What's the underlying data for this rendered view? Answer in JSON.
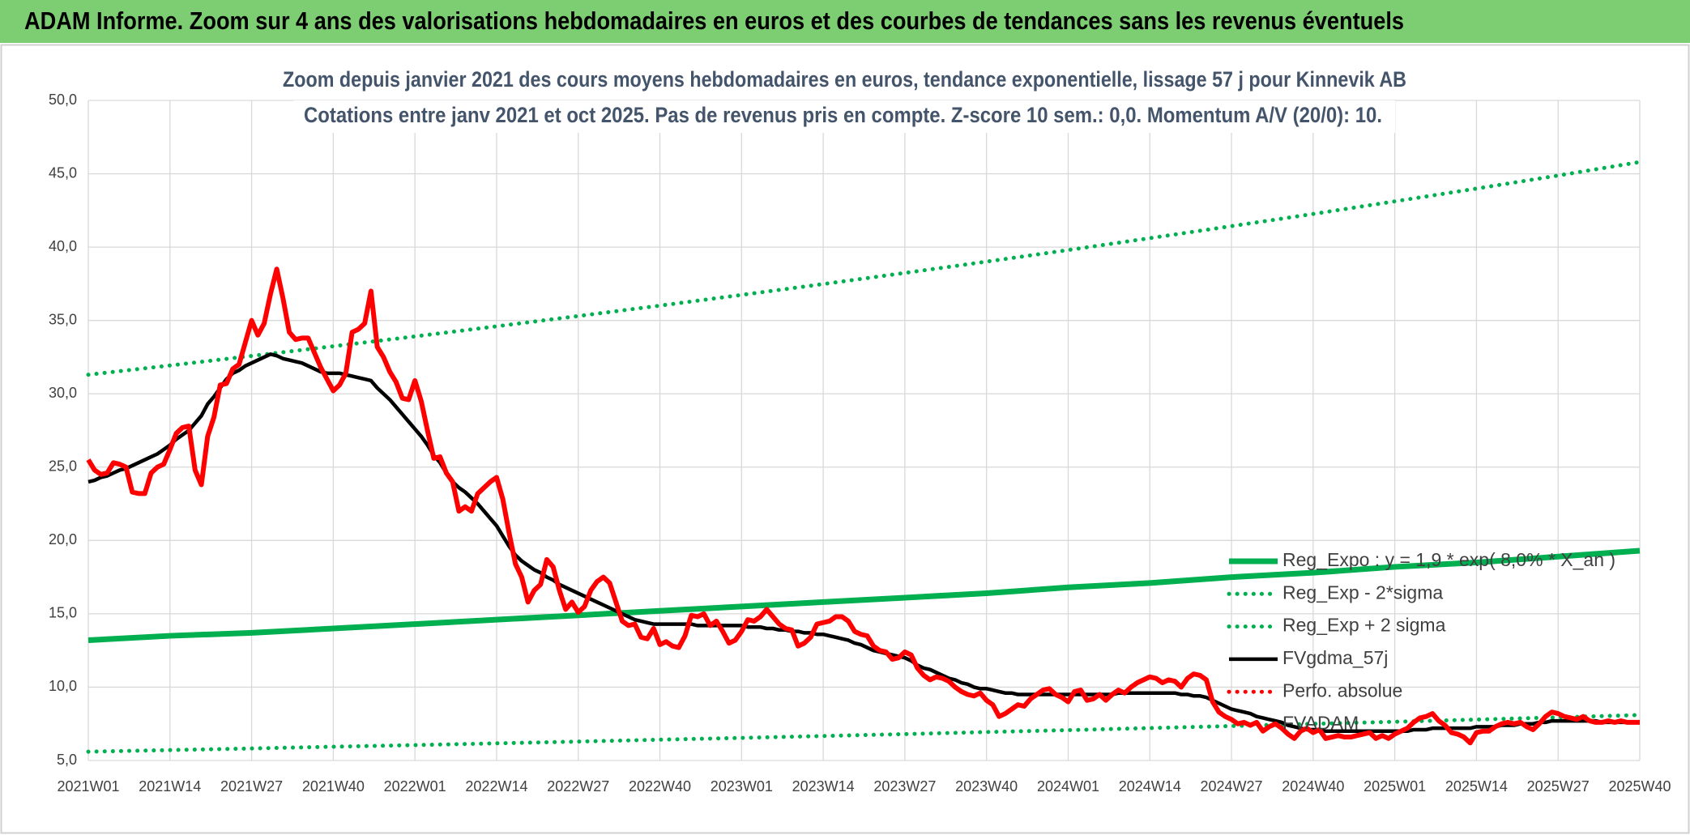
{
  "header": {
    "title": "ADAM Informe. Zoom sur 4 ans des valorisations hebdomadaires en euros et des courbes de tendances sans les revenus éventuels"
  },
  "chart_data": {
    "type": "line",
    "title": "Zoom depuis janvier 2021 des cours moyens hebdomadaires en euros, tendance exponentielle, lissage 57 j pour Kinnevik AB",
    "subtitle": "Cotations entre janv 2021 et oct 2025. Pas de revenus pris en compte. Z-score 10 sem.: 0,0. Momentum A/V (20/0): 10.",
    "categories": [
      "2021W01",
      null,
      null,
      null,
      null,
      null,
      null,
      null,
      null,
      null,
      null,
      null,
      null,
      "2021W14",
      null,
      null,
      null,
      null,
      null,
      null,
      null,
      null,
      null,
      null,
      null,
      null,
      "2021W27",
      null,
      null,
      null,
      null,
      null,
      null,
      null,
      null,
      null,
      null,
      null,
      null,
      "2021W40",
      null,
      null,
      null,
      null,
      null,
      null,
      null,
      null,
      null,
      null,
      null,
      null,
      "2022W01",
      null,
      null,
      null,
      null,
      null,
      null,
      null,
      null,
      null,
      null,
      null,
      null,
      "2022W14",
      null,
      null,
      null,
      null,
      null,
      null,
      null,
      null,
      null,
      null,
      null,
      null,
      "2022W27",
      null,
      null,
      null,
      null,
      null,
      null,
      null,
      null,
      null,
      null,
      null,
      null,
      "2022W40",
      null,
      null,
      null,
      null,
      null,
      null,
      null,
      null,
      null,
      null,
      null,
      null,
      "2023W01",
      null,
      null,
      null,
      null,
      null,
      null,
      null,
      null,
      null,
      null,
      null,
      null,
      "2023W14",
      null,
      null,
      null,
      null,
      null,
      null,
      null,
      null,
      null,
      null,
      null,
      null,
      "2023W27",
      null,
      null,
      null,
      null,
      null,
      null,
      null,
      null,
      null,
      null,
      null,
      null,
      "2023W40",
      null,
      null,
      null,
      null,
      null,
      null,
      null,
      null,
      null,
      null,
      null,
      null,
      "2024W01",
      null,
      null,
      null,
      null,
      null,
      null,
      null,
      null,
      null,
      null,
      null,
      null,
      "2024W14",
      null,
      null,
      null,
      null,
      null,
      null,
      null,
      null,
      null,
      null,
      null,
      null,
      "2024W27",
      null,
      null,
      null,
      null,
      null,
      null,
      null,
      null,
      null,
      null,
      null,
      null,
      "2024W40",
      null,
      null,
      null,
      null,
      null,
      null,
      null,
      null,
      null,
      null,
      null,
      null,
      "2025W01",
      null,
      null,
      null,
      null,
      null,
      null,
      null,
      null,
      null,
      null,
      null,
      null,
      "2025W14",
      null,
      null,
      null,
      null,
      null,
      null,
      null,
      null,
      null,
      null,
      null,
      null,
      "2025W27",
      null,
      null,
      null,
      null,
      null,
      null,
      null,
      null,
      null,
      null,
      null,
      null,
      "2025W40"
    ],
    "ylim": [
      5,
      50
    ],
    "yticks": [
      {
        "value": 5,
        "label": "5,0"
      },
      {
        "value": 10,
        "label": "10,0"
      },
      {
        "value": 15,
        "label": "15,0"
      },
      {
        "value": 20,
        "label": "20,0"
      },
      {
        "value": 25,
        "label": "25,0"
      },
      {
        "value": 30,
        "label": "30,0"
      },
      {
        "value": 35,
        "label": "35,0"
      },
      {
        "value": 40,
        "label": "40,0"
      },
      {
        "value": 45,
        "label": "45,0"
      },
      {
        "value": 50,
        "label": "50,0"
      }
    ],
    "grid": true,
    "legend": "right",
    "series": [
      {
        "name": "Reg_Expo : y = 1,9 * exp( 8,0% * X_an )",
        "color": "#00b050",
        "style": "solid",
        "x": [
          "2021W01",
          "2021W14",
          "2021W27",
          "2021W40",
          "2022W01",
          "2022W14",
          "2022W27",
          "2022W40",
          "2023W01",
          "2023W14",
          "2023W27",
          "2023W40",
          "2024W01",
          "2024W14",
          "2024W27",
          "2024W40",
          "2025W01",
          "2025W14",
          "2025W27",
          "2025W40"
        ],
        "values": [
          13.2,
          13.5,
          13.7,
          14.0,
          14.3,
          14.6,
          14.9,
          15.2,
          15.5,
          15.8,
          16.1,
          16.4,
          16.8,
          17.1,
          17.5,
          17.8,
          18.2,
          18.5,
          18.9,
          19.3
        ]
      },
      {
        "name": "Reg_Exp - 2*sigma",
        "color": "#00b050",
        "style": "dotted",
        "x": [
          "2021W01",
          "2021W14",
          "2021W27",
          "2021W40",
          "2022W01",
          "2022W14",
          "2022W27",
          "2022W40",
          "2023W01",
          "2023W14",
          "2023W27",
          "2023W40",
          "2024W01",
          "2024W14",
          "2024W27",
          "2024W40",
          "2025W01",
          "2025W14",
          "2025W27",
          "2025W40"
        ],
        "values": [
          5.6,
          5.71,
          5.82,
          5.94,
          6.05,
          6.17,
          6.29,
          6.42,
          6.54,
          6.67,
          6.8,
          6.94,
          7.07,
          7.21,
          7.35,
          7.5,
          7.64,
          7.79,
          7.94,
          8.1
        ]
      },
      {
        "name": "Reg_Exp + 2 sigma",
        "color": "#00b050",
        "style": "dotted",
        "x": [
          "2021W01",
          "2021W14",
          "2021W27",
          "2021W40",
          "2022W01",
          "2022W14",
          "2022W27",
          "2022W40",
          "2023W01",
          "2023W14",
          "2023W27",
          "2023W40",
          "2024W01",
          "2024W14",
          "2024W27",
          "2024W40",
          "2025W01",
          "2025W14",
          "2025W27",
          "2025W40"
        ],
        "values": [
          31.3,
          31.93,
          32.58,
          33.24,
          33.91,
          34.6,
          35.3,
          36.01,
          36.74,
          37.48,
          38.24,
          39.01,
          39.8,
          40.61,
          41.43,
          42.26,
          43.12,
          43.99,
          44.88,
          45.8
        ]
      },
      {
        "name": "FVgdma_57j",
        "color": "#000000",
        "style": "solid",
        "values": [
          24.0,
          24.1,
          24.3,
          24.4,
          24.6,
          24.8,
          24.9,
          25.1,
          25.3,
          25.5,
          25.7,
          25.9,
          26.2,
          26.5,
          26.9,
          27.2,
          27.5,
          28.0,
          28.5,
          29.3,
          29.8,
          30.4,
          31.0,
          31.4,
          31.6,
          31.9,
          32.1,
          32.3,
          32.5,
          32.7,
          32.6,
          32.4,
          32.3,
          32.2,
          32.1,
          31.9,
          31.7,
          31.5,
          31.4,
          31.4,
          31.4,
          31.3,
          31.2,
          31.1,
          31.0,
          30.9,
          30.4,
          30.0,
          29.6,
          29.1,
          28.6,
          28.1,
          27.6,
          27.1,
          26.5,
          25.8,
          25.3,
          24.6,
          24.0,
          23.6,
          23.3,
          22.9,
          22.5,
          22.0,
          21.5,
          21.0,
          20.3,
          19.6,
          19.0,
          18.6,
          18.3,
          18.0,
          17.8,
          17.5,
          17.3,
          17.0,
          16.8,
          16.6,
          16.4,
          16.2,
          16.0,
          15.8,
          15.6,
          15.4,
          15.2,
          15.0,
          14.8,
          14.6,
          14.5,
          14.4,
          14.3,
          14.3,
          14.3,
          14.3,
          14.3,
          14.3,
          14.3,
          14.2,
          14.2,
          14.2,
          14.2,
          14.2,
          14.2,
          14.2,
          14.2,
          14.1,
          14.1,
          14.1,
          14.0,
          14.0,
          13.9,
          13.9,
          13.8,
          13.8,
          13.7,
          13.7,
          13.6,
          13.6,
          13.5,
          13.4,
          13.3,
          13.2,
          13.0,
          12.9,
          12.7,
          12.5,
          12.4,
          12.3,
          12.2,
          12.1,
          12.0,
          11.8,
          11.5,
          11.3,
          11.2,
          11.0,
          10.8,
          10.6,
          10.5,
          10.3,
          10.2,
          10.0,
          9.9,
          9.9,
          9.8,
          9.7,
          9.6,
          9.6,
          9.5,
          9.5,
          9.5,
          9.5,
          9.5,
          9.5,
          9.5,
          9.5,
          9.5,
          9.5,
          9.5,
          9.5,
          9.5,
          9.5,
          9.5,
          9.5,
          9.6,
          9.6,
          9.6,
          9.6,
          9.6,
          9.6,
          9.6,
          9.6,
          9.6,
          9.6,
          9.5,
          9.5,
          9.4,
          9.4,
          9.3,
          9.1,
          8.9,
          8.7,
          8.5,
          8.4,
          8.3,
          8.2,
          8.0,
          7.9,
          7.8,
          7.7,
          7.6,
          7.4,
          7.3,
          7.2,
          7.1,
          7.1,
          7.1,
          7.0,
          7.0,
          7.0,
          7.0,
          7.0,
          7.0,
          7.0,
          7.0,
          7.0,
          7.0,
          7.0,
          7.0,
          7.0,
          7.0,
          7.1,
          7.1,
          7.1,
          7.2,
          7.2,
          7.2,
          7.2,
          7.2,
          7.2,
          7.2,
          7.3,
          7.3,
          7.3,
          7.3,
          7.4,
          7.4,
          7.4,
          7.5,
          7.5,
          7.5,
          7.6,
          7.6,
          7.7,
          7.7,
          7.7,
          7.7,
          7.7,
          7.7,
          7.7,
          7.7,
          7.6,
          7.6,
          7.6,
          7.6,
          7.6,
          7.6,
          7.6
        ]
      },
      {
        "name": "Perfo. absolue",
        "color": "#ff0000",
        "style": "solid",
        "legend_style": "dotted",
        "values": [
          25.5,
          24.8,
          24.5,
          24.6,
          25.3,
          25.2,
          25.0,
          23.3,
          23.2,
          23.2,
          24.6,
          25.0,
          25.2,
          26.2,
          27.3,
          27.7,
          27.8,
          24.8,
          23.8,
          27.1,
          28.4,
          30.6,
          30.7,
          31.7,
          32.0,
          33.5,
          35.0,
          34.0,
          34.8,
          36.8,
          38.5,
          36.5,
          34.2,
          33.7,
          33.8,
          33.8,
          32.8,
          31.8,
          31.0,
          30.2,
          30.6,
          31.4,
          34.2,
          34.4,
          34.8,
          37.0,
          33.2,
          32.5,
          31.5,
          30.8,
          29.7,
          29.6,
          30.9,
          29.5,
          27.5,
          25.6,
          25.7,
          24.6,
          24.0,
          22.0,
          22.3,
          22.0,
          23.2,
          23.6,
          24.0,
          24.3,
          22.8,
          20.5,
          18.4,
          17.5,
          15.8,
          16.6,
          17.0,
          18.7,
          18.2,
          16.6,
          15.3,
          15.8,
          15.1,
          15.5,
          16.6,
          17.2,
          17.5,
          17.1,
          15.8,
          14.5,
          14.2,
          14.3,
          13.4,
          13.3,
          14.0,
          12.9,
          13.1,
          12.8,
          12.7,
          13.5,
          14.9,
          14.8,
          15.0,
          14.2,
          14.5,
          13.8,
          13.0,
          13.2,
          13.8,
          14.6,
          14.5,
          14.8,
          15.3,
          14.8,
          14.3,
          14.0,
          13.9,
          12.8,
          13.0,
          13.4,
          14.3,
          14.4,
          14.5,
          14.8,
          14.8,
          14.5,
          13.8,
          13.6,
          13.5,
          12.8,
          12.5,
          12.4,
          11.9,
          12.0,
          12.4,
          12.2,
          11.3,
          10.8,
          10.5,
          10.7,
          10.6,
          10.4,
          10.0,
          9.7,
          9.5,
          9.4,
          9.6,
          9.1,
          8.8,
          8.0,
          8.2,
          8.5,
          8.8,
          8.7,
          9.2,
          9.5,
          9.8,
          9.9,
          9.5,
          9.3,
          9.0,
          9.7,
          9.8,
          9.1,
          9.2,
          9.5,
          9.1,
          9.5,
          9.8,
          9.6,
          10.0,
          10.3,
          10.5,
          10.7,
          10.6,
          10.3,
          10.5,
          10.4,
          10.0,
          10.6,
          10.9,
          10.8,
          10.5,
          9.0,
          8.3,
          8.0,
          7.8,
          7.5,
          7.6,
          7.4,
          7.6,
          7.0,
          7.3,
          7.5,
          7.2,
          6.8,
          6.5,
          7.0,
          7.2,
          6.9,
          7.1,
          6.5,
          6.6,
          6.7,
          6.6,
          6.6,
          6.7,
          6.8,
          6.9,
          6.5,
          6.7,
          6.5,
          6.8,
          7.0,
          7.2,
          7.6,
          7.9,
          8.0,
          8.2,
          7.7,
          7.4,
          6.9,
          6.8,
          6.6,
          6.2,
          6.9,
          7.0,
          7.0,
          7.3,
          7.5,
          7.6,
          7.5,
          7.6,
          7.3,
          7.1,
          7.5,
          8.0,
          8.3,
          8.2,
          8.0,
          7.9,
          7.8,
          8.0,
          7.7,
          7.6,
          7.6,
          7.7,
          7.6,
          7.7,
          7.6,
          7.6,
          7.6
        ]
      },
      {
        "name": "FVADAM"
      }
    ]
  }
}
